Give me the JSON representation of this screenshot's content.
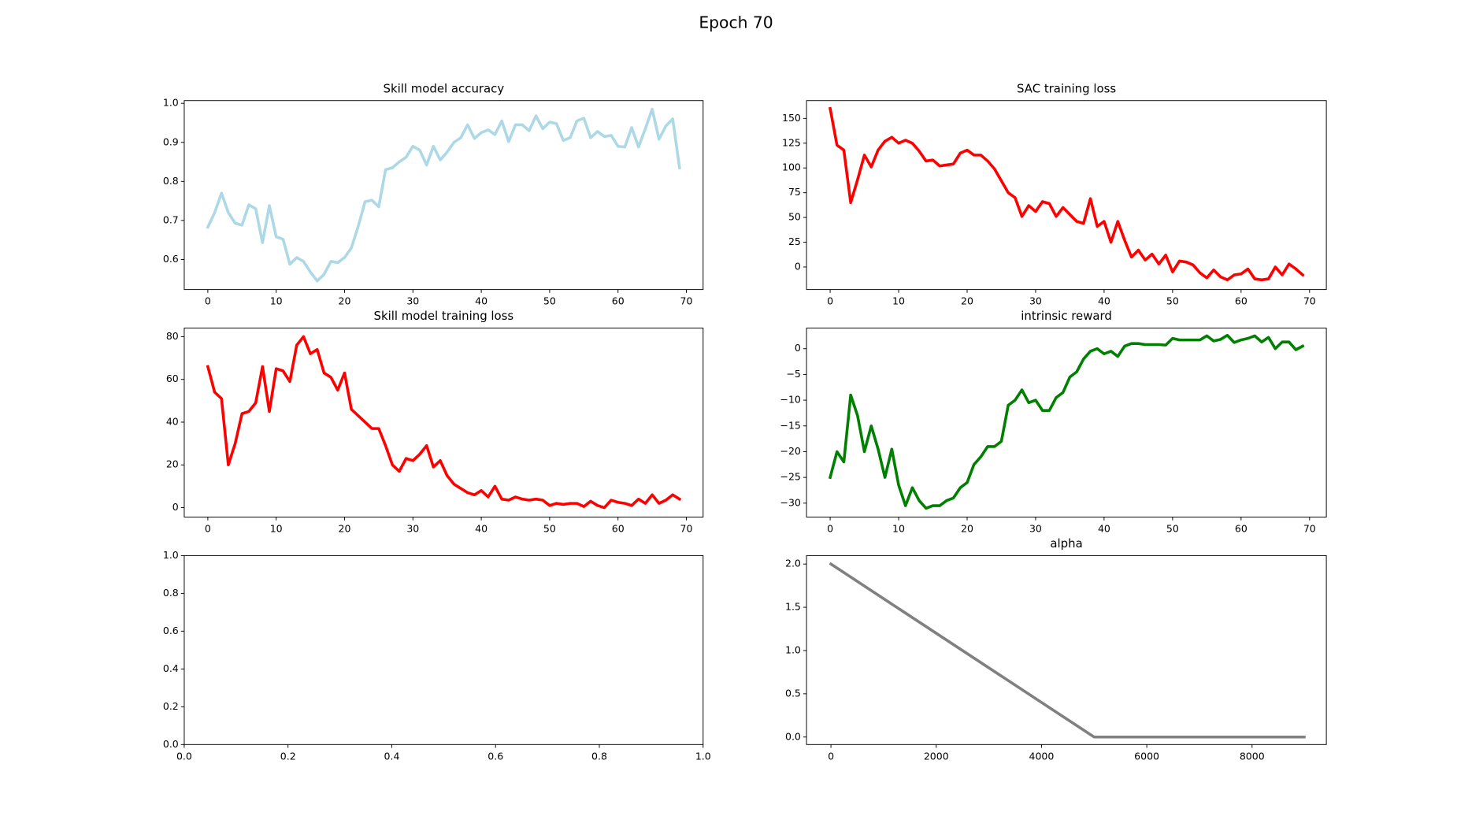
{
  "title": "Epoch 70",
  "chart_data": [
    {
      "type": "line",
      "title": "Skill model accuracy",
      "x": [
        0,
        1,
        2,
        3,
        4,
        5,
        6,
        7,
        8,
        9,
        10,
        11,
        12,
        13,
        14,
        15,
        16,
        17,
        18,
        19,
        20,
        21,
        22,
        23,
        24,
        25,
        26,
        27,
        28,
        29,
        30,
        31,
        32,
        33,
        34,
        35,
        36,
        37,
        38,
        39,
        40,
        41,
        42,
        43,
        44,
        45,
        46,
        47,
        48,
        49,
        50,
        51,
        52,
        53,
        54,
        55,
        56,
        57,
        58,
        59,
        60,
        61,
        62,
        63,
        64,
        65,
        66,
        67,
        68,
        69
      ],
      "series": [
        {
          "color": "#add8e6",
          "values": [
            0.683,
            0.72,
            0.77,
            0.72,
            0.693,
            0.688,
            0.74,
            0.73,
            0.643,
            0.738,
            0.658,
            0.652,
            0.588,
            0.605,
            0.595,
            0.568,
            0.545,
            0.562,
            0.595,
            0.592,
            0.605,
            0.63,
            0.685,
            0.748,
            0.752,
            0.735,
            0.83,
            0.835,
            0.85,
            0.862,
            0.89,
            0.88,
            0.842,
            0.89,
            0.855,
            0.875,
            0.9,
            0.912,
            0.945,
            0.91,
            0.925,
            0.932,
            0.92,
            0.955,
            0.902,
            0.945,
            0.945,
            0.93,
            0.968,
            0.935,
            0.952,
            0.948,
            0.905,
            0.912,
            0.955,
            0.962,
            0.912,
            0.928,
            0.915,
            0.918,
            0.89,
            0.888,
            0.938,
            0.888,
            0.935,
            0.985,
            0.908,
            0.942,
            0.96,
            0.835
          ]
        }
      ],
      "xlim": [
        -3.45,
        72.45
      ],
      "ylim": [
        0.523,
        1.007
      ],
      "xticks": [
        0,
        10,
        20,
        30,
        40,
        50,
        60,
        70
      ],
      "yticks": [
        0.6,
        0.7,
        0.8,
        0.9,
        {
          "value": 1.0,
          "label": "1.0"
        }
      ]
    },
    {
      "type": "line",
      "title": "SAC training loss",
      "x": [
        0,
        1,
        2,
        3,
        4,
        5,
        6,
        7,
        8,
        9,
        10,
        11,
        12,
        13,
        14,
        15,
        16,
        17,
        18,
        19,
        20,
        21,
        22,
        23,
        24,
        25,
        26,
        27,
        28,
        29,
        30,
        31,
        32,
        33,
        34,
        35,
        36,
        37,
        38,
        39,
        40,
        41,
        42,
        43,
        44,
        45,
        46,
        47,
        48,
        49,
        50,
        51,
        52,
        53,
        54,
        55,
        56,
        57,
        58,
        59,
        60,
        61,
        62,
        63,
        64,
        65,
        66,
        67,
        68,
        69
      ],
      "series": [
        {
          "color": "#ff0000",
          "values": [
            160,
            123,
            118,
            65,
            88,
            113,
            101,
            118,
            127,
            131,
            125,
            128,
            125,
            117,
            107,
            108,
            102,
            103,
            104,
            115,
            118,
            113,
            113,
            107,
            99,
            87,
            75,
            70,
            51,
            62,
            56,
            66,
            64,
            51,
            60,
            53,
            46,
            44,
            69,
            41,
            46,
            25,
            46,
            27,
            10,
            17,
            7,
            13,
            3,
            12,
            -5,
            6,
            5,
            2,
            -6,
            -11,
            -3,
            -10,
            -13,
            -8,
            -7,
            -2,
            -12,
            -13,
            -12,
            0,
            -8,
            3,
            -2,
            -8
          ]
        }
      ],
      "xlim": [
        -3.45,
        72.45
      ],
      "ylim": [
        -22.8,
        168
      ],
      "xticks": [
        0,
        10,
        20,
        30,
        40,
        50,
        60,
        70
      ],
      "yticks": [
        0,
        25,
        50,
        75,
        100,
        125,
        150
      ]
    },
    {
      "type": "line",
      "title": "Skill model training loss",
      "x": [
        0,
        1,
        2,
        3,
        4,
        5,
        6,
        7,
        8,
        9,
        10,
        11,
        12,
        13,
        14,
        15,
        16,
        17,
        18,
        19,
        20,
        21,
        22,
        23,
        24,
        25,
        26,
        27,
        28,
        29,
        30,
        31,
        32,
        33,
        34,
        35,
        36,
        37,
        38,
        39,
        40,
        41,
        42,
        43,
        44,
        45,
        46,
        47,
        48,
        49,
        50,
        51,
        52,
        53,
        54,
        55,
        56,
        57,
        58,
        59,
        60,
        61,
        62,
        63,
        64,
        65,
        66,
        67,
        68,
        69
      ],
      "series": [
        {
          "color": "#ff0000",
          "values": [
            66,
            54,
            51,
            20,
            30,
            44,
            45,
            49,
            66,
            45,
            65,
            64,
            59,
            76,
            80,
            72,
            74,
            63,
            61,
            55,
            63,
            46,
            43,
            40,
            37,
            37,
            29,
            20,
            17,
            23,
            22,
            25,
            29,
            19,
            22,
            15,
            11,
            9,
            7,
            6,
            8,
            5,
            10,
            4,
            3.5,
            5,
            4,
            3.5,
            4,
            3.5,
            1,
            2,
            1.5,
            2,
            2,
            0.5,
            3,
            1,
            0,
            3.5,
            2.5,
            2,
            1,
            4,
            2,
            6,
            2,
            3.5,
            6,
            4
          ]
        }
      ],
      "xlim": [
        -3.45,
        72.45
      ],
      "ylim": [
        -4.4,
        84
      ],
      "xticks": [
        0,
        10,
        20,
        30,
        40,
        50,
        60,
        70
      ],
      "yticks": [
        0,
        20,
        40,
        60,
        80
      ]
    },
    {
      "type": "line",
      "title": "intrinsic reward",
      "x": [
        0,
        1,
        2,
        3,
        4,
        5,
        6,
        7,
        8,
        9,
        10,
        11,
        12,
        13,
        14,
        15,
        16,
        17,
        18,
        19,
        20,
        21,
        22,
        23,
        24,
        25,
        26,
        27,
        28,
        29,
        30,
        31,
        32,
        33,
        34,
        35,
        36,
        37,
        38,
        39,
        40,
        41,
        42,
        43,
        44,
        45,
        46,
        47,
        48,
        49,
        50,
        51,
        52,
        53,
        54,
        55,
        56,
        57,
        58,
        59,
        60,
        61,
        62,
        63,
        64,
        65,
        66,
        67,
        68,
        69
      ],
      "series": [
        {
          "color": "#008000",
          "values": [
            -25,
            -20,
            -22,
            -9,
            -13,
            -20,
            -15,
            -19.5,
            -25,
            -19.5,
            -26.5,
            -30.5,
            -27,
            -29.5,
            -31,
            -30.5,
            -30.5,
            -29.5,
            -29,
            -27,
            -26,
            -22.5,
            -21,
            -19,
            -19,
            -18,
            -11,
            -10,
            -8,
            -10.5,
            -10,
            -12,
            -12,
            -9.5,
            -8.5,
            -5.5,
            -4.5,
            -2,
            -0.5,
            0,
            -1,
            -0.5,
            -1.5,
            0.5,
            1,
            1,
            0.8,
            0.8,
            0.8,
            0.7,
            2,
            1.7,
            1.7,
            1.7,
            1.7,
            2.5,
            1.5,
            1.8,
            2.6,
            1.2,
            1.7,
            2,
            2.5,
            1.3,
            2.2,
            0,
            1.3,
            1.3,
            -0.2,
            0.5
          ]
        }
      ],
      "xlim": [
        -3.45,
        72.45
      ],
      "ylim": [
        -32.7,
        4.0
      ],
      "xticks": [
        0,
        10,
        20,
        30,
        40,
        50,
        60,
        70
      ],
      "yticks": [
        {
          "value": -30,
          "label": "−30"
        },
        {
          "value": -25,
          "label": "−25"
        },
        {
          "value": -20,
          "label": "−20"
        },
        {
          "value": -15,
          "label": "−15"
        },
        {
          "value": -10,
          "label": "−10"
        },
        {
          "value": -5,
          "label": "−5"
        },
        0
      ]
    },
    {
      "type": "line",
      "xlim": [
        0,
        1
      ],
      "ylim": [
        0,
        1
      ],
      "xticks": [
        {
          "value": 0,
          "label": "0.0"
        },
        0.2,
        0.4,
        0.6,
        0.8,
        {
          "value": 1,
          "label": "1.0"
        }
      ],
      "yticks": [
        {
          "value": 0,
          "label": "0.0"
        },
        0.2,
        0.4,
        0.6,
        0.8,
        {
          "value": 1,
          "label": "1.0"
        }
      ]
    },
    {
      "type": "line",
      "title": "alpha",
      "x": [
        0,
        5000,
        8990
      ],
      "series": [
        {
          "color": "#808080",
          "values": [
            2.0,
            0,
            0
          ]
        }
      ],
      "xlim": [
        -464,
        9411
      ],
      "ylim": [
        -0.087,
        2.098
      ],
      "xticks": [
        0,
        2000,
        4000,
        6000,
        8000
      ],
      "yticks": [
        {
          "value": 0,
          "label": "0.0"
        },
        0.5,
        {
          "value": 1,
          "label": "1.0"
        },
        1.5,
        {
          "value": 2,
          "label": "2.0"
        }
      ]
    }
  ]
}
